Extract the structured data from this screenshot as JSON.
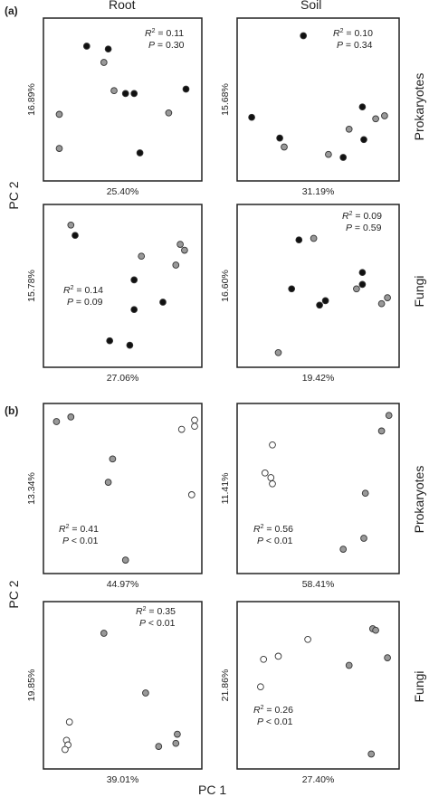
{
  "labels": {
    "panel_a": "(a)",
    "panel_b": "(b)",
    "col_root": "Root",
    "col_soil": "Soil",
    "row_prokaryotes": "Prokaryotes",
    "row_fungi": "Fungi",
    "y_axis": "PC 2",
    "x_axis": "PC 1"
  },
  "colors": {
    "filled_black": "#111111",
    "filled_grey": "#999999",
    "open": "#ffffff",
    "marker_edge": "#333333"
  },
  "chart_data": [
    {
      "type": "scatter",
      "panel": "a",
      "column": "Root",
      "row": "Prokaryotes",
      "xlabel": "25.40%",
      "ylabel": "16.89%",
      "stats": {
        "r2_label": "R",
        "r2_value": "= 0.11",
        "p_label": "P",
        "p_value": "= 0.30"
      },
      "xlim": [
        0,
        100
      ],
      "ylim": [
        0,
        100
      ],
      "points": [
        {
          "x": 25,
          "y": 86,
          "fill": "black"
        },
        {
          "x": 40,
          "y": 84,
          "fill": "black"
        },
        {
          "x": 37,
          "y": 75,
          "fill": "grey"
        },
        {
          "x": 44,
          "y": 56,
          "fill": "grey"
        },
        {
          "x": 52,
          "y": 54,
          "fill": "black"
        },
        {
          "x": 58,
          "y": 54,
          "fill": "black"
        },
        {
          "x": 94,
          "y": 57,
          "fill": "black"
        },
        {
          "x": 6,
          "y": 40,
          "fill": "grey"
        },
        {
          "x": 82,
          "y": 41,
          "fill": "grey"
        },
        {
          "x": 6,
          "y": 17,
          "fill": "grey"
        },
        {
          "x": 62,
          "y": 14,
          "fill": "black"
        }
      ]
    },
    {
      "type": "scatter",
      "panel": "a",
      "column": "Soil",
      "row": "Prokaryotes",
      "xlabel": "31.19%",
      "ylabel": "15.68%",
      "stats": {
        "r2_label": "R",
        "r2_value": "= 0.10",
        "p_label": "P",
        "p_value": "= 0.34"
      },
      "xlim": [
        0,
        100
      ],
      "ylim": [
        0,
        100
      ],
      "points": [
        {
          "x": 40,
          "y": 93,
          "fill": "black"
        },
        {
          "x": 80,
          "y": 45,
          "fill": "black"
        },
        {
          "x": 95,
          "y": 39,
          "fill": "grey"
        },
        {
          "x": 89,
          "y": 37,
          "fill": "grey"
        },
        {
          "x": 5,
          "y": 38,
          "fill": "black"
        },
        {
          "x": 71,
          "y": 30,
          "fill": "grey"
        },
        {
          "x": 24,
          "y": 24,
          "fill": "black"
        },
        {
          "x": 81,
          "y": 23,
          "fill": "black"
        },
        {
          "x": 27,
          "y": 18,
          "fill": "grey"
        },
        {
          "x": 57,
          "y": 13,
          "fill": "grey"
        },
        {
          "x": 67,
          "y": 11,
          "fill": "black"
        }
      ]
    },
    {
      "type": "scatter",
      "panel": "a",
      "column": "Root",
      "row": "Fungi",
      "xlabel": "27.06%",
      "ylabel": "15.78%",
      "stats": {
        "r2_label": "R",
        "r2_value": "= 0.14",
        "p_label": "P",
        "p_value": "= 0.09"
      },
      "xlim": [
        0,
        100
      ],
      "ylim": [
        0,
        100
      ],
      "points": [
        {
          "x": 14,
          "y": 91,
          "fill": "grey"
        },
        {
          "x": 17,
          "y": 84,
          "fill": "black"
        },
        {
          "x": 90,
          "y": 78,
          "fill": "grey"
        },
        {
          "x": 93,
          "y": 74,
          "fill": "grey"
        },
        {
          "x": 63,
          "y": 70,
          "fill": "grey"
        },
        {
          "x": 87,
          "y": 64,
          "fill": "grey"
        },
        {
          "x": 58,
          "y": 54,
          "fill": "black"
        },
        {
          "x": 78,
          "y": 39,
          "fill": "black"
        },
        {
          "x": 58,
          "y": 34,
          "fill": "black"
        },
        {
          "x": 41,
          "y": 13,
          "fill": "black"
        },
        {
          "x": 55,
          "y": 10,
          "fill": "black"
        }
      ]
    },
    {
      "type": "scatter",
      "panel": "a",
      "column": "Soil",
      "row": "Fungi",
      "xlabel": "19.42%",
      "ylabel": "16.60%",
      "stats": {
        "r2_label": "R",
        "r2_value": "= 0.09",
        "p_label": "P",
        "p_value": "= 0.59"
      },
      "xlim": [
        0,
        100
      ],
      "ylim": [
        0,
        100
      ],
      "points": [
        {
          "x": 37,
          "y": 81,
          "fill": "black"
        },
        {
          "x": 47,
          "y": 82,
          "fill": "grey"
        },
        {
          "x": 80,
          "y": 59,
          "fill": "black"
        },
        {
          "x": 80,
          "y": 51,
          "fill": "black"
        },
        {
          "x": 76,
          "y": 48,
          "fill": "grey"
        },
        {
          "x": 32,
          "y": 48,
          "fill": "black"
        },
        {
          "x": 55,
          "y": 40,
          "fill": "black"
        },
        {
          "x": 51,
          "y": 37,
          "fill": "black"
        },
        {
          "x": 97,
          "y": 42,
          "fill": "grey"
        },
        {
          "x": 93,
          "y": 38,
          "fill": "grey"
        },
        {
          "x": 23,
          "y": 5,
          "fill": "grey"
        }
      ]
    },
    {
      "type": "scatter",
      "panel": "b",
      "column": "Root",
      "row": "Prokaryotes",
      "xlabel": "44.97%",
      "ylabel": "13.34%",
      "stats": {
        "r2_label": "R",
        "r2_value": "= 0.41",
        "p_label": "P",
        "p_value": "< 0.01"
      },
      "xlim": [
        0,
        100
      ],
      "ylim": [
        0,
        100
      ],
      "points": [
        {
          "x": 4,
          "y": 93,
          "fill": "grey"
        },
        {
          "x": 14,
          "y": 96,
          "fill": "grey"
        },
        {
          "x": 43,
          "y": 69,
          "fill": "grey"
        },
        {
          "x": 40,
          "y": 54,
          "fill": "grey"
        },
        {
          "x": 52,
          "y": 4,
          "fill": "grey"
        },
        {
          "x": 91,
          "y": 88,
          "fill": "open"
        },
        {
          "x": 100,
          "y": 90,
          "fill": "open"
        },
        {
          "x": 100,
          "y": 94,
          "fill": "open"
        },
        {
          "x": 98,
          "y": 46,
          "fill": "open"
        }
      ]
    },
    {
      "type": "scatter",
      "panel": "b",
      "column": "Soil",
      "row": "Prokaryotes",
      "xlabel": "58.41%",
      "ylabel": "11.41%",
      "stats": {
        "r2_label": "R",
        "r2_value": "= 0.56",
        "p_label": "P",
        "p_value": "< 0.01"
      },
      "xlim": [
        0,
        100
      ],
      "ylim": [
        0,
        100
      ],
      "points": [
        {
          "x": 98,
          "y": 97,
          "fill": "grey"
        },
        {
          "x": 93,
          "y": 87,
          "fill": "grey"
        },
        {
          "x": 82,
          "y": 47,
          "fill": "grey"
        },
        {
          "x": 81,
          "y": 18,
          "fill": "grey"
        },
        {
          "x": 67,
          "y": 11,
          "fill": "grey"
        },
        {
          "x": 19,
          "y": 78,
          "fill": "open"
        },
        {
          "x": 14,
          "y": 60,
          "fill": "open"
        },
        {
          "x": 18,
          "y": 57,
          "fill": "open"
        },
        {
          "x": 19,
          "y": 53,
          "fill": "open"
        }
      ]
    },
    {
      "type": "scatter",
      "panel": "b",
      "column": "Root",
      "row": "Fungi",
      "xlabel": "39.01%",
      "ylabel": "19.85%",
      "stats": {
        "r2_label": "R",
        "r2_value": "= 0.35",
        "p_label": "P",
        "p_value": "< 0.01"
      },
      "xlim": [
        0,
        100
      ],
      "ylim": [
        0,
        100
      ],
      "points": [
        {
          "x": 37,
          "y": 84,
          "fill": "grey"
        },
        {
          "x": 66,
          "y": 45,
          "fill": "grey"
        },
        {
          "x": 88,
          "y": 18,
          "fill": "grey"
        },
        {
          "x": 87,
          "y": 12,
          "fill": "grey"
        },
        {
          "x": 75,
          "y": 10,
          "fill": "grey"
        },
        {
          "x": 13,
          "y": 26,
          "fill": "open"
        },
        {
          "x": 11,
          "y": 14,
          "fill": "open"
        },
        {
          "x": 12,
          "y": 11,
          "fill": "open"
        },
        {
          "x": 10,
          "y": 8,
          "fill": "open"
        }
      ]
    },
    {
      "type": "scatter",
      "panel": "b",
      "column": "Soil",
      "row": "Fungi",
      "xlabel": "27.40%",
      "ylabel": "21.86%",
      "stats": {
        "r2_label": "R",
        "r2_value": "= 0.26",
        "p_label": "P",
        "p_value": "< 0.01"
      },
      "xlim": [
        0,
        100
      ],
      "ylim": [
        0,
        100
      ],
      "points": [
        {
          "x": 87,
          "y": 87,
          "fill": "grey"
        },
        {
          "x": 89,
          "y": 86,
          "fill": "grey"
        },
        {
          "x": 97,
          "y": 68,
          "fill": "grey"
        },
        {
          "x": 71,
          "y": 63,
          "fill": "grey"
        },
        {
          "x": 86,
          "y": 5,
          "fill": "grey"
        },
        {
          "x": 43,
          "y": 80,
          "fill": "open"
        },
        {
          "x": 23,
          "y": 69,
          "fill": "open"
        },
        {
          "x": 13,
          "y": 67,
          "fill": "open"
        },
        {
          "x": 11,
          "y": 49,
          "fill": "open"
        }
      ]
    }
  ]
}
